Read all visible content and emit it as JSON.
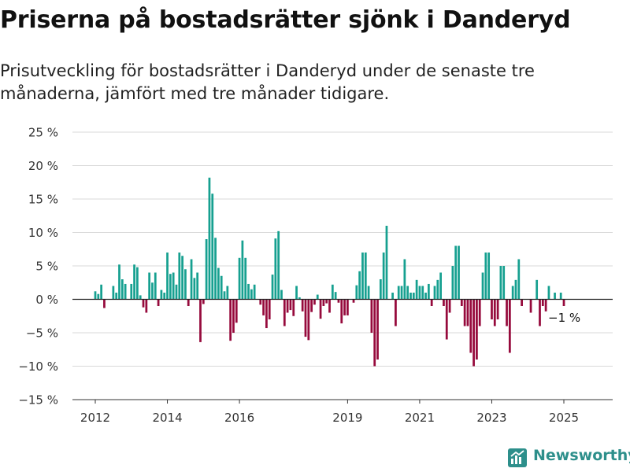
{
  "title": "Priserna på bostadsrätter sjönk i Danderyd",
  "subtitle": "Prisutveckling för bostadsrätter i Danderyd under de senaste tre månaderna, jämfört med tre månader tidigare.",
  "brand": {
    "name": "Newsworthy",
    "color": "#2d8f8b"
  },
  "chart_data": {
    "type": "bar",
    "title": "Priserna på bostadsrätter sjönk i Danderyd",
    "subtitle": "Prisutveckling för bostadsrätter i Danderyd under de senaste tre månaderna, jämfört med tre månader tidigare.",
    "xlabel": "",
    "ylabel": "",
    "x_tick_labels": [
      "2012",
      "2014",
      "2016",
      "2019",
      "2021",
      "2023",
      "2025"
    ],
    "y_tick_labels": [
      "25 %",
      "20 %",
      "15 %",
      "10 %",
      "5 %",
      "0 %",
      "−5 %",
      "−10 %",
      "−15 %"
    ],
    "y_ticks": [
      25,
      20,
      15,
      10,
      5,
      0,
      -5,
      -10,
      -15
    ],
    "ylim": [
      -15,
      25
    ],
    "grid": true,
    "legend": "none",
    "colors": {
      "positive": "#16a090",
      "negative": "#960a3c",
      "zero_line": "#222222",
      "grid": "#d9d9d9"
    },
    "start_month": "2012-01",
    "frequency": "monthly",
    "values": [
      1.2,
      0.8,
      2.2,
      -1.3,
      0,
      0,
      2.0,
      1.0,
      5.2,
      3.0,
      2.3,
      0,
      2.3,
      5.2,
      4.8,
      0.6,
      -1.2,
      -2.0,
      4.0,
      2.5,
      4.0,
      -1.0,
      1.4,
      1.0,
      7.0,
      3.8,
      4.0,
      2.2,
      7.0,
      6.5,
      4.5,
      -1.0,
      6.0,
      3.2,
      4.0,
      -6.4,
      -0.7,
      9.0,
      18.2,
      15.8,
      9.2,
      4.7,
      3.5,
      1.2,
      2.0,
      -6.2,
      -5.0,
      -3.5,
      6.2,
      8.8,
      6.2,
      2.3,
      1.5,
      2.2,
      0,
      -0.8,
      -2.4,
      -4.3,
      -3.0,
      3.7,
      9.1,
      10.2,
      1.4,
      -4.0,
      -2.0,
      -1.6,
      -2.5,
      2.0,
      0.3,
      -1.8,
      -5.6,
      -6.1,
      -1.9,
      -0.8,
      0.7,
      -2.9,
      -1.0,
      -0.6,
      -2.0,
      2.2,
      1.1,
      -0.5,
      -3.6,
      -2.4,
      -2.4,
      0,
      -0.5,
      2.1,
      4.2,
      7.0,
      7.0,
      2.0,
      -5.0,
      -10.0,
      -9.0,
      3.0,
      7.0,
      11.0,
      0,
      1.0,
      -4.0,
      2.0,
      2.0,
      6.0,
      2.0,
      1.0,
      1.0,
      2.9,
      2.0,
      2.0,
      1.0,
      2.3,
      -1.0,
      2.0,
      2.9,
      4.0,
      -1.0,
      -6.0,
      -2.0,
      5.0,
      8.0,
      8.0,
      -1.0,
      -4.0,
      -4.0,
      -8.0,
      -10.0,
      -9.0,
      -4.0,
      4.0,
      7.0,
      7.0,
      -3.0,
      -4.0,
      -3.0,
      5.0,
      5.0,
      -4.0,
      -8.0,
      2.0,
      2.9,
      6.0,
      -1.0,
      0,
      0,
      -2.0,
      0,
      2.9,
      -4.0,
      -1.0,
      -1.8,
      2.0,
      0,
      1.0,
      0,
      1.0,
      -1.0
    ],
    "annotations": [
      {
        "label": "−1 %"
      }
    ]
  }
}
